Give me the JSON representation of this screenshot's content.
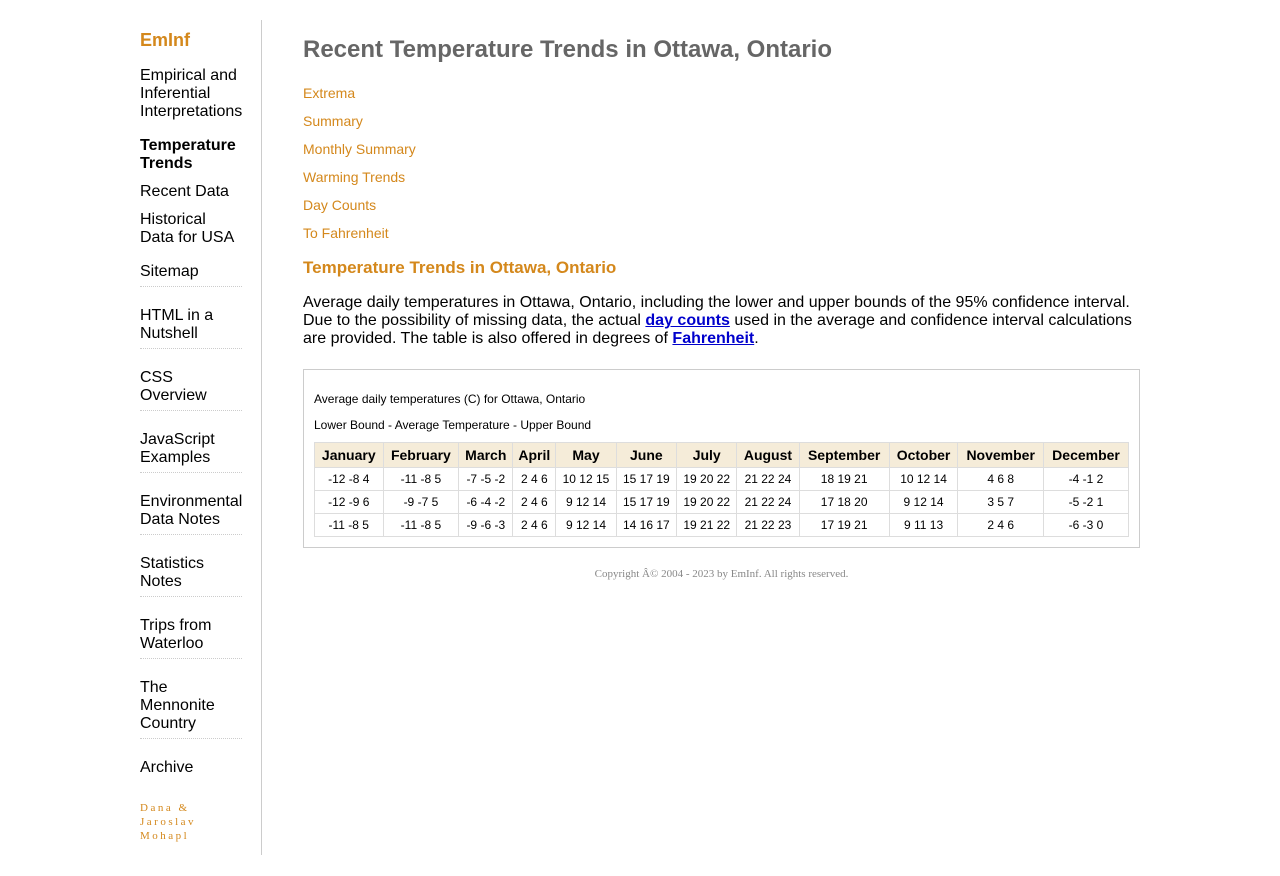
{
  "sidebar": {
    "brand": "EmInf",
    "items": [
      {
        "label": "Empirical and Inferential Interpretations"
      },
      {
        "label": "Temperature Trends"
      },
      {
        "label": "Recent Data"
      },
      {
        "label": "Historical Data for USA"
      },
      {
        "label": "Sitemap"
      },
      {
        "label": "HTML in a Nutshell"
      },
      {
        "label": "CSS Overview"
      },
      {
        "label": "JavaScript Examples"
      },
      {
        "label": "Environmental Data Notes"
      },
      {
        "label": "Statistics Notes"
      },
      {
        "label": "Trips from Waterloo"
      },
      {
        "label": "The Mennonite Country"
      },
      {
        "label": "Archive"
      }
    ],
    "signature": "Dana & Jaroslav Mohapl"
  },
  "main": {
    "title": "Recent Temperature Trends in Ottawa, Ontario",
    "toc": [
      "Extrema",
      "Summary",
      "Monthly Summary",
      "Warming Trends",
      "Day Counts",
      "To Fahrenheit"
    ],
    "section_title": "Temperature Trends in Ottawa, Ontario",
    "paragraph": {
      "part1": "Average daily temperatures in Ottawa, Ontario, including the lower and upper bounds of the 95% confidence interval. Due to the possibility of missing data, the actual ",
      "link1": "day counts",
      "part2": " used in the average and confidence interval calculations are provided. The table is also offered in degrees of ",
      "link2": "Fahrenheit",
      "part3": "."
    },
    "table": {
      "caption1": "Average daily temperatures (C) for Ottawa, Ontario",
      "caption2": "Lower Bound - Average Temperature - Upper Bound",
      "headers": [
        "January",
        "February",
        "March",
        "April",
        "May",
        "June",
        "July",
        "August",
        "September",
        "October",
        "November",
        "December"
      ],
      "rows": [
        [
          "-12 -8 4",
          "-11 -8 5",
          "-7 -5 -2",
          "2 4 6",
          "10 12 15",
          "15 17 19",
          "19 20 22",
          "21 22 24",
          "18 19 21",
          "10 12 14",
          "4 6 8",
          "-4 -1 2"
        ],
        [
          "-12 -9 6",
          "-9 -7 5",
          "-6 -4 -2",
          "2 4 6",
          "9 12 14",
          "15 17 19",
          "19 20 22",
          "21 22 24",
          "17 18 20",
          "9 12 14",
          "3 5 7",
          "-5 -2 1"
        ],
        [
          "-11 -8 5",
          "-11 -8 5",
          "-9 -6 -3",
          "2 4 6",
          "9 12 14",
          "14 16 17",
          "19 21 22",
          "21 22 23",
          "17 19 21",
          "9 11 13",
          "2 4 6",
          "-6 -3 0"
        ]
      ]
    },
    "copyright": "Copyright Â© 2004 - 2023 by EmInf. All rights reserved."
  }
}
